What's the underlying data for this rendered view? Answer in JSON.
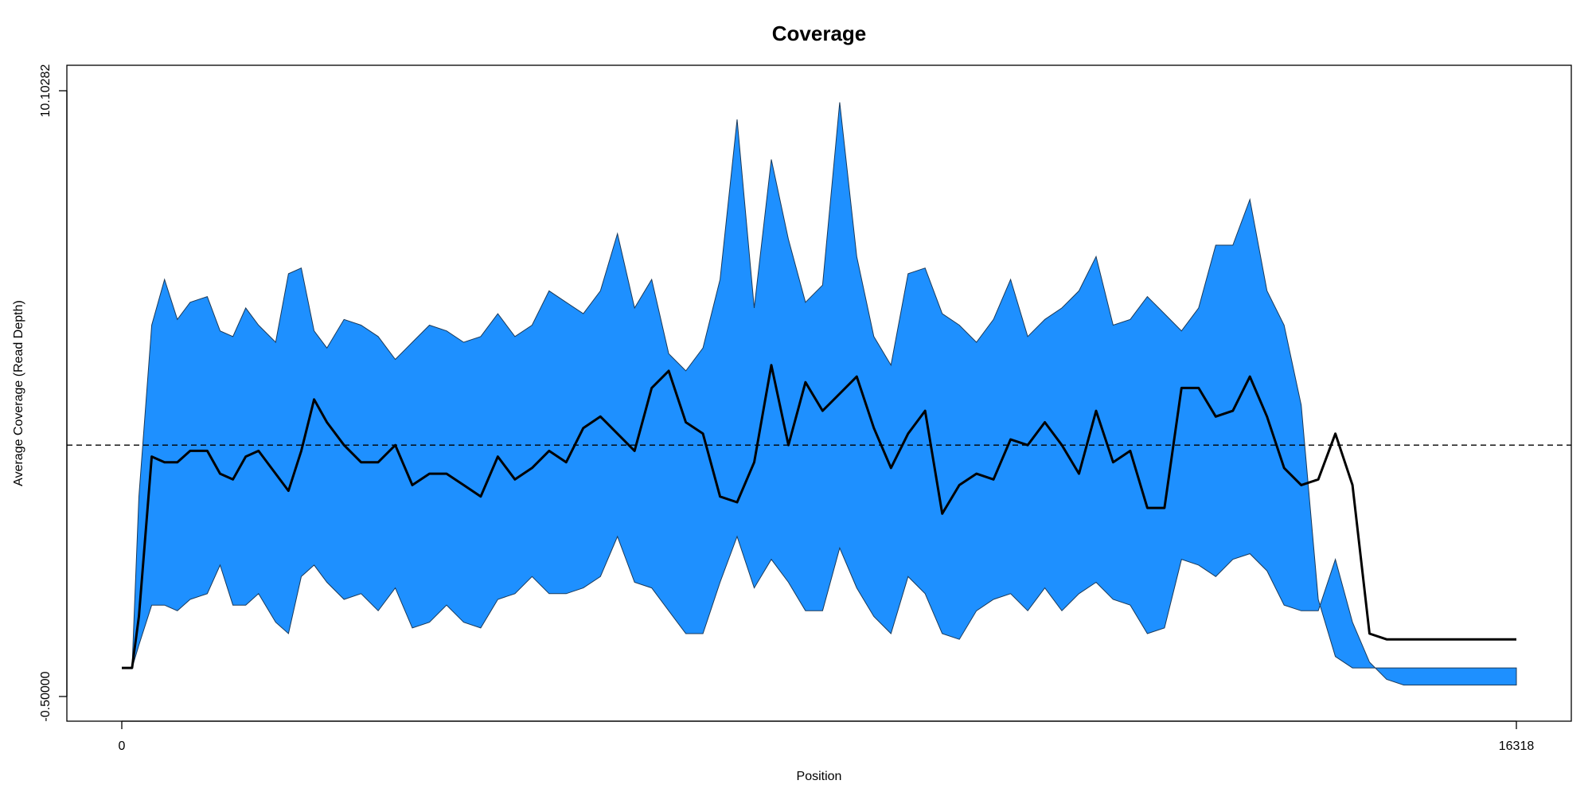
{
  "chart_data": {
    "type": "area",
    "title": "Coverage",
    "xlabel": "Position",
    "ylabel": "Average Coverage (Read Depth)",
    "xlim": [
      0,
      16318
    ],
    "ylim": [
      -0.5,
      10.10282
    ],
    "x_ticks": [
      {
        "value": 0,
        "label": "0"
      },
      {
        "value": 16318,
        "label": "16318"
      }
    ],
    "y_ticks": [
      {
        "value": -0.5,
        "label": "-0.50000"
      },
      {
        "value": 10.10282,
        "label": "10.10282"
      }
    ],
    "reference_line": {
      "value": 3.9,
      "style": "dashed",
      "color": "#000000"
    },
    "band_color": "#1E90FF",
    "line_color": "#000000",
    "x": [
      0,
      120,
      200,
      350,
      500,
      650,
      800,
      1000,
      1150,
      1300,
      1450,
      1600,
      1800,
      1950,
      2100,
      2250,
      2400,
      2600,
      2800,
      3000,
      3200,
      3400,
      3600,
      3800,
      4000,
      4200,
      4400,
      4600,
      4800,
      5000,
      5200,
      5400,
      5600,
      5800,
      6000,
      6200,
      6400,
      6600,
      6800,
      7000,
      7200,
      7400,
      7600,
      7800,
      8000,
      8200,
      8400,
      8600,
      8800,
      9000,
      9200,
      9400,
      9600,
      9800,
      10000,
      10200,
      10400,
      10600,
      10800,
      11000,
      11200,
      11400,
      11600,
      11800,
      12000,
      12200,
      12400,
      12600,
      12800,
      13000,
      13200,
      13400,
      13600,
      13800,
      14000,
      14200,
      14400,
      14600,
      14800,
      15000,
      15200,
      15400,
      15600,
      15800,
      16000,
      16100,
      16200,
      16318
    ],
    "series": [
      {
        "role": "upper",
        "values": [
          0.0,
          0.0,
          3.0,
          6.0,
          6.8,
          6.1,
          6.4,
          6.5,
          5.9,
          5.8,
          6.3,
          6.0,
          5.7,
          6.9,
          7.0,
          5.9,
          5.6,
          6.1,
          6.0,
          5.8,
          5.4,
          5.7,
          6.0,
          5.9,
          5.7,
          5.8,
          6.2,
          5.8,
          6.0,
          6.6,
          6.4,
          6.2,
          6.6,
          7.6,
          6.3,
          6.8,
          5.5,
          5.2,
          5.6,
          6.8,
          9.6,
          6.3,
          8.9,
          7.5,
          6.4,
          6.7,
          9.9,
          7.2,
          5.8,
          5.3,
          6.9,
          7.0,
          6.2,
          6.0,
          5.7,
          6.1,
          6.8,
          5.8,
          6.1,
          6.3,
          6.6,
          7.2,
          6.0,
          6.1,
          6.5,
          6.2,
          5.9,
          6.3,
          7.4,
          7.4,
          8.2,
          6.6,
          6.0,
          4.6,
          1.2,
          0.2,
          0.0,
          0.0,
          0.0,
          0.0,
          0.0,
          0.0,
          0.0,
          0.0,
          0.0,
          0.0,
          0.0,
          0.0
        ]
      },
      {
        "role": "mean",
        "values": [
          0.0,
          0.0,
          0.9,
          3.7,
          3.6,
          3.6,
          3.8,
          3.8,
          3.4,
          3.3,
          3.7,
          3.8,
          3.4,
          3.1,
          3.8,
          4.7,
          4.3,
          3.9,
          3.6,
          3.6,
          3.9,
          3.2,
          3.4,
          3.4,
          3.2,
          3.0,
          3.7,
          3.3,
          3.5,
          3.8,
          3.6,
          4.2,
          4.4,
          4.1,
          3.8,
          4.9,
          5.2,
          4.3,
          4.1,
          3.0,
          2.9,
          3.6,
          5.3,
          3.9,
          5.0,
          4.5,
          4.8,
          5.1,
          4.2,
          3.5,
          4.1,
          4.5,
          2.7,
          3.2,
          3.4,
          3.3,
          4.0,
          3.9,
          4.3,
          3.9,
          3.4,
          4.5,
          3.6,
          3.8,
          2.8,
          2.8,
          4.9,
          4.9,
          4.4,
          4.5,
          5.1,
          4.4,
          3.5,
          3.2,
          3.3,
          4.1,
          3.2,
          0.6,
          0.5,
          0.5,
          0.5,
          0.5,
          0.5,
          0.5,
          0.5,
          0.5,
          0.5,
          0.5
        ]
      },
      {
        "role": "lower",
        "values": [
          0.0,
          0.0,
          0.4,
          1.1,
          1.1,
          1.0,
          1.2,
          1.3,
          1.8,
          1.1,
          1.1,
          1.3,
          0.8,
          0.6,
          1.6,
          1.8,
          1.5,
          1.2,
          1.3,
          1.0,
          1.4,
          0.7,
          0.8,
          1.1,
          0.8,
          0.7,
          1.2,
          1.3,
          1.6,
          1.3,
          1.3,
          1.4,
          1.6,
          2.3,
          1.5,
          1.4,
          1.0,
          0.6,
          0.6,
          1.5,
          2.3,
          1.4,
          1.9,
          1.5,
          1.0,
          1.0,
          2.1,
          1.4,
          0.9,
          0.6,
          1.6,
          1.3,
          0.6,
          0.5,
          1.0,
          1.2,
          1.3,
          1.0,
          1.4,
          1.0,
          1.3,
          1.5,
          1.2,
          1.1,
          0.6,
          0.7,
          1.9,
          1.8,
          1.6,
          1.9,
          2.0,
          1.7,
          1.1,
          1.0,
          1.0,
          1.9,
          0.8,
          0.1,
          -0.2,
          -0.3,
          -0.3,
          -0.3,
          -0.3,
          -0.3,
          -0.3,
          -0.3,
          -0.3,
          -0.3
        ]
      }
    ]
  }
}
